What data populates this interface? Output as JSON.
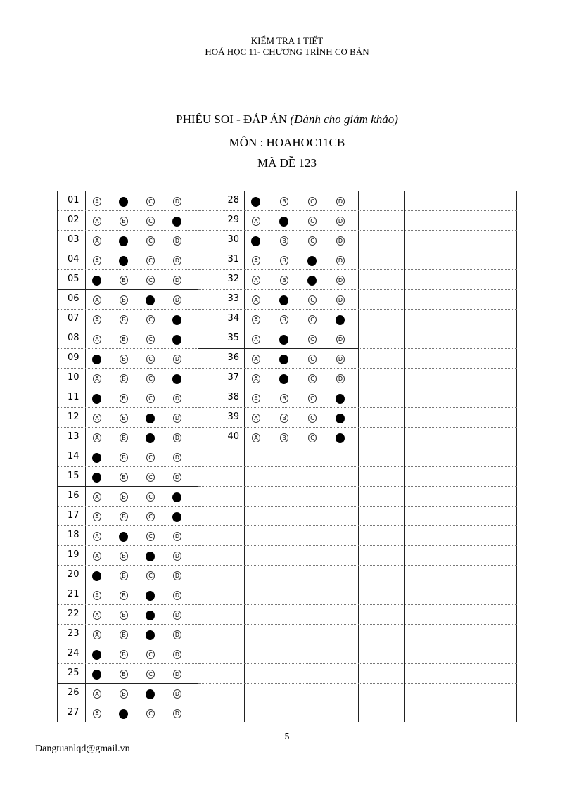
{
  "header": {
    "line1": "KIỂM TRA 1 TIẾT",
    "line2": "HOÁ HỌC 11- CHƯƠNG TRÌNH CƠ BẢN"
  },
  "title": {
    "main": "PHIẾU SOI - ĐÁP ÁN ",
    "note": "(Dành cho giám khảo)",
    "subject": "MÔN : HOAHOC11CB",
    "code": "MÃ ĐỀ 123"
  },
  "options": [
    "A",
    "B",
    "C",
    "D"
  ],
  "answers": [
    {
      "q": "01",
      "a": "B"
    },
    {
      "q": "02",
      "a": "D"
    },
    {
      "q": "03",
      "a": "B"
    },
    {
      "q": "04",
      "a": "B"
    },
    {
      "q": "05",
      "a": "A"
    },
    {
      "q": "06",
      "a": "C"
    },
    {
      "q": "07",
      "a": "D"
    },
    {
      "q": "08",
      "a": "D"
    },
    {
      "q": "09",
      "a": "A"
    },
    {
      "q": "10",
      "a": "D"
    },
    {
      "q": "11",
      "a": "A"
    },
    {
      "q": "12",
      "a": "C"
    },
    {
      "q": "13",
      "a": "C"
    },
    {
      "q": "14",
      "a": "A"
    },
    {
      "q": "15",
      "a": "A"
    },
    {
      "q": "16",
      "a": "D"
    },
    {
      "q": "17",
      "a": "D"
    },
    {
      "q": "18",
      "a": "B"
    },
    {
      "q": "19",
      "a": "C"
    },
    {
      "q": "20",
      "a": "A"
    },
    {
      "q": "21",
      "a": "C"
    },
    {
      "q": "22",
      "a": "C"
    },
    {
      "q": "23",
      "a": "C"
    },
    {
      "q": "24",
      "a": "A"
    },
    {
      "q": "25",
      "a": "A"
    },
    {
      "q": "26",
      "a": "C"
    },
    {
      "q": "27",
      "a": "B"
    },
    {
      "q": "28",
      "a": "A"
    },
    {
      "q": "29",
      "a": "B"
    },
    {
      "q": "30",
      "a": "A"
    },
    {
      "q": "31",
      "a": "C"
    },
    {
      "q": "32",
      "a": "C"
    },
    {
      "q": "33",
      "a": "B"
    },
    {
      "q": "34",
      "a": "D"
    },
    {
      "q": "35",
      "a": "B"
    },
    {
      "q": "36",
      "a": "B"
    },
    {
      "q": "37",
      "a": "B"
    },
    {
      "q": "38",
      "a": "D"
    },
    {
      "q": "39",
      "a": "D"
    },
    {
      "q": "40",
      "a": "D"
    }
  ],
  "footer": {
    "page": "5",
    "email": "Dangtuanlqd@gmail.vn"
  }
}
